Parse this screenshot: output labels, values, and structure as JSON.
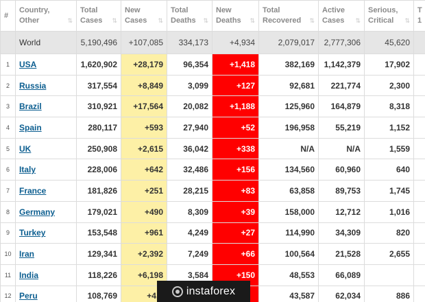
{
  "headers": {
    "num": "#",
    "country": [
      "Country,",
      "Other"
    ],
    "total_cases": [
      "Total",
      "Cases"
    ],
    "new_cases": [
      "New",
      "Cases"
    ],
    "total_deaths": [
      "Total",
      "Deaths"
    ],
    "new_deaths": [
      "New",
      "Deaths"
    ],
    "total_recovered": [
      "Total",
      "Recovered"
    ],
    "active_cases": [
      "Active",
      "Cases"
    ],
    "serious_critical": [
      "Serious,",
      "Critical"
    ],
    "next_col": [
      "T",
      "1"
    ]
  },
  "sort_icons": {
    "default": "⇅",
    "active": "⇅"
  },
  "world": {
    "country": "World",
    "total_cases": "5,190,496",
    "new_cases": "+107,085",
    "total_deaths": "334,173",
    "new_deaths": "+4,934",
    "total_recovered": "2,079,017",
    "active_cases": "2,777,306",
    "serious_critical": "45,620"
  },
  "rows": [
    {
      "num": "1",
      "country": "USA",
      "total_cases": "1,620,902",
      "new_cases": "+28,179",
      "total_deaths": "96,354",
      "new_deaths": "+1,418",
      "total_recovered": "382,169",
      "active_cases": "1,142,379",
      "serious_critical": "17,902"
    },
    {
      "num": "2",
      "country": "Russia",
      "total_cases": "317,554",
      "new_cases": "+8,849",
      "total_deaths": "3,099",
      "new_deaths": "+127",
      "total_recovered": "92,681",
      "active_cases": "221,774",
      "serious_critical": "2,300"
    },
    {
      "num": "3",
      "country": "Brazil",
      "total_cases": "310,921",
      "new_cases": "+17,564",
      "total_deaths": "20,082",
      "new_deaths": "+1,188",
      "total_recovered": "125,960",
      "active_cases": "164,879",
      "serious_critical": "8,318"
    },
    {
      "num": "4",
      "country": "Spain",
      "total_cases": "280,117",
      "new_cases": "+593",
      "total_deaths": "27,940",
      "new_deaths": "+52",
      "total_recovered": "196,958",
      "active_cases": "55,219",
      "serious_critical": "1,152"
    },
    {
      "num": "5",
      "country": "UK",
      "total_cases": "250,908",
      "new_cases": "+2,615",
      "total_deaths": "36,042",
      "new_deaths": "+338",
      "total_recovered": "N/A",
      "active_cases": "N/A",
      "serious_critical": "1,559"
    },
    {
      "num": "6",
      "country": "Italy",
      "total_cases": "228,006",
      "new_cases": "+642",
      "total_deaths": "32,486",
      "new_deaths": "+156",
      "total_recovered": "134,560",
      "active_cases": "60,960",
      "serious_critical": "640"
    },
    {
      "num": "7",
      "country": "France",
      "total_cases": "181,826",
      "new_cases": "+251",
      "total_deaths": "28,215",
      "new_deaths": "+83",
      "total_recovered": "63,858",
      "active_cases": "89,753",
      "serious_critical": "1,745"
    },
    {
      "num": "8",
      "country": "Germany",
      "total_cases": "179,021",
      "new_cases": "+490",
      "total_deaths": "8,309",
      "new_deaths": "+39",
      "total_recovered": "158,000",
      "active_cases": "12,712",
      "serious_critical": "1,016"
    },
    {
      "num": "9",
      "country": "Turkey",
      "total_cases": "153,548",
      "new_cases": "+961",
      "total_deaths": "4,249",
      "new_deaths": "+27",
      "total_recovered": "114,990",
      "active_cases": "34,309",
      "serious_critical": "820"
    },
    {
      "num": "10",
      "country": "Iran",
      "total_cases": "129,341",
      "new_cases": "+2,392",
      "total_deaths": "7,249",
      "new_deaths": "+66",
      "total_recovered": "100,564",
      "active_cases": "21,528",
      "serious_critical": "2,655"
    },
    {
      "num": "11",
      "country": "India",
      "total_cases": "118,226",
      "new_cases": "+6,198",
      "total_deaths": "3,584",
      "new_deaths": "+150",
      "total_recovered": "48,553",
      "active_cases": "66,089",
      "serious_critical": ""
    },
    {
      "num": "12",
      "country": "Peru",
      "total_cases": "108,769",
      "new_cases": "+4,7",
      "total_deaths": "",
      "new_deaths": "",
      "total_recovered": "43,587",
      "active_cases": "62,034",
      "serious_critical": "886"
    }
  ],
  "watermark": {
    "text": "instaforex"
  },
  "colors": {
    "new_cases_bg": "#fdf0a6",
    "new_deaths_bg": "#ff0000",
    "world_bg": "#e6e6e6",
    "link": "#0c5e90"
  }
}
